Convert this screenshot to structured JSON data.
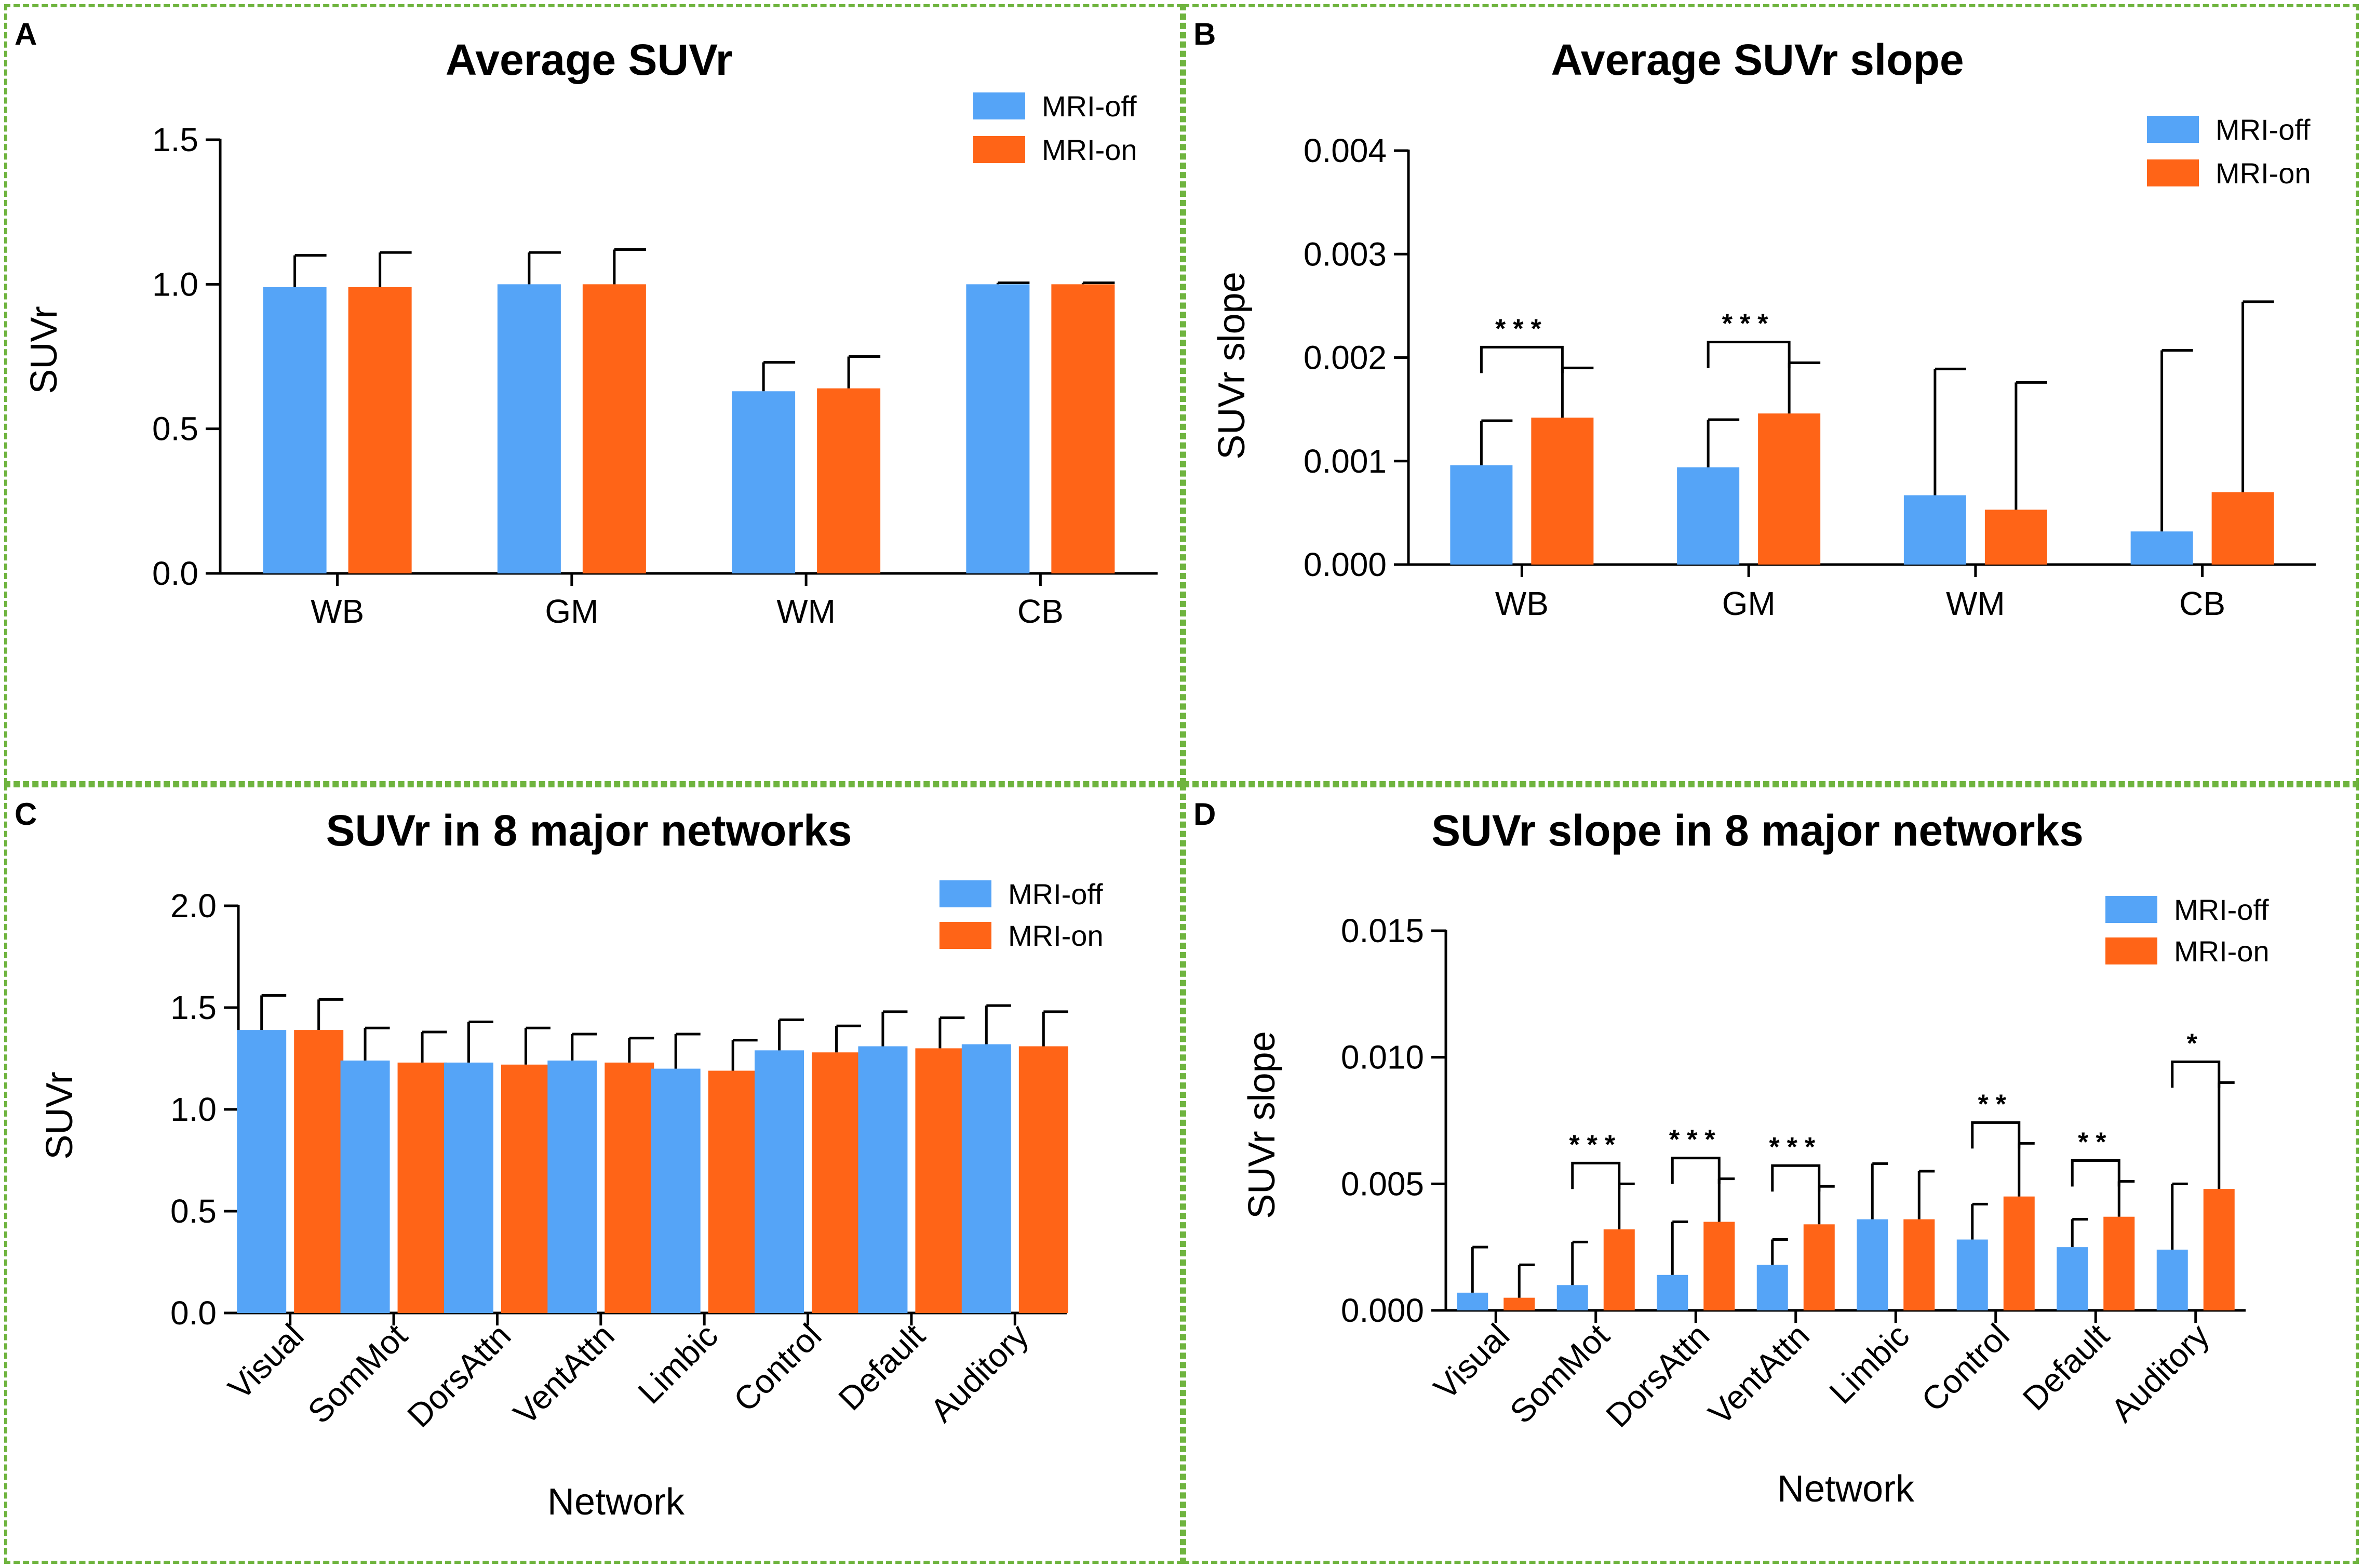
{
  "colors": {
    "off": "#55a4f7",
    "on": "#ff6417",
    "frame": "#6fb43f"
  },
  "chart_data": [
    {
      "panel": "A",
      "type": "bar",
      "title": "Average SUVr",
      "xlabel": "",
      "ylabel": "SUVr",
      "ylim": [
        0,
        1.5
      ],
      "yticks": [
        0.0,
        0.5,
        1.0,
        1.5
      ],
      "ytick_labels": [
        "0.0",
        "0.5",
        "1.0",
        "1.5"
      ],
      "categories": [
        "WB",
        "GM",
        "WM",
        "CB"
      ],
      "series": [
        {
          "name": "MRI-off",
          "values": [
            0.99,
            1.0,
            0.63,
            1.0
          ],
          "errors": [
            0.11,
            0.11,
            0.1,
            0.005
          ]
        },
        {
          "name": "MRI-on",
          "values": [
            0.99,
            1.0,
            0.64,
            1.0
          ],
          "errors": [
            0.12,
            0.12,
            0.11,
            0.005
          ]
        }
      ],
      "significance": []
    },
    {
      "panel": "B",
      "type": "bar",
      "title": "Average SUVr slope",
      "xlabel": "",
      "ylabel": "SUVr slope",
      "ylim": [
        0,
        0.004
      ],
      "yticks": [
        0,
        0.001,
        0.002,
        0.003,
        0.004
      ],
      "ytick_labels": [
        "0.000",
        "0.001",
        "0.002",
        "0.003",
        "0.004"
      ],
      "categories": [
        "WB",
        "GM",
        "WM",
        "CB"
      ],
      "series": [
        {
          "name": "MRI-off",
          "values": [
            0.00096,
            0.00094,
            0.00067,
            0.00032
          ],
          "errors": [
            0.00043,
            0.00046,
            0.00122,
            0.00175
          ]
        },
        {
          "name": "MRI-on",
          "values": [
            0.00142,
            0.00146,
            0.00053,
            0.0007
          ],
          "errors": [
            0.00048,
            0.00049,
            0.00123,
            0.00184
          ]
        }
      ],
      "significance": [
        {
          "category": 0,
          "label": "***"
        },
        {
          "category": 1,
          "label": "***"
        }
      ]
    },
    {
      "panel": "C",
      "type": "bar",
      "title": "SUVr in 8 major networks",
      "xlabel": "Network",
      "ylabel": "SUVr",
      "ylim": [
        0,
        2.0
      ],
      "yticks": [
        0.0,
        0.5,
        1.0,
        1.5,
        2.0
      ],
      "ytick_labels": [
        "0.0",
        "0.5",
        "1.0",
        "1.5",
        "2.0"
      ],
      "categories": [
        "Visual",
        "SomMot",
        "DorsAttn",
        "VentAttn",
        "Limbic",
        "Control",
        "Default",
        "Auditory"
      ],
      "series": [
        {
          "name": "MRI-off",
          "values": [
            1.39,
            1.24,
            1.23,
            1.24,
            1.2,
            1.29,
            1.31,
            1.32
          ],
          "errors": [
            0.17,
            0.16,
            0.2,
            0.13,
            0.17,
            0.15,
            0.17,
            0.19
          ]
        },
        {
          "name": "MRI-on",
          "values": [
            1.39,
            1.23,
            1.22,
            1.23,
            1.19,
            1.28,
            1.3,
            1.31
          ],
          "errors": [
            0.15,
            0.15,
            0.18,
            0.12,
            0.15,
            0.13,
            0.15,
            0.17
          ]
        }
      ],
      "significance": []
    },
    {
      "panel": "D",
      "type": "bar",
      "title": "SUVr slope in 8 major networks",
      "xlabel": "Network",
      "ylabel": "SUVr slope",
      "ylim": [
        0,
        0.015
      ],
      "yticks": [
        0,
        0.005,
        0.01,
        0.015
      ],
      "ytick_labels": [
        "0.000",
        "0.005",
        "0.010",
        "0.015"
      ],
      "categories": [
        "Visual",
        "SomMot",
        "DorsAttn",
        "VentAttn",
        "Limbic",
        "Control",
        "Default",
        "Auditory"
      ],
      "series": [
        {
          "name": "MRI-off",
          "values": [
            0.0007,
            0.001,
            0.0014,
            0.0018,
            0.0036,
            0.0028,
            0.0025,
            0.0024
          ],
          "errors": [
            0.0018,
            0.0017,
            0.0021,
            0.001,
            0.0022,
            0.0014,
            0.0011,
            0.0026
          ]
        },
        {
          "name": "MRI-on",
          "values": [
            0.0005,
            0.0032,
            0.0035,
            0.0034,
            0.0036,
            0.0045,
            0.0037,
            0.0048
          ],
          "errors": [
            0.0013,
            0.0018,
            0.0017,
            0.0015,
            0.0019,
            0.0021,
            0.0014,
            0.0042
          ]
        }
      ],
      "significance": [
        {
          "category": 1,
          "label": "***"
        },
        {
          "category": 2,
          "label": "***"
        },
        {
          "category": 3,
          "label": "***"
        },
        {
          "category": 5,
          "label": "**"
        },
        {
          "category": 6,
          "label": "**"
        },
        {
          "category": 7,
          "label": "*"
        }
      ]
    }
  ]
}
